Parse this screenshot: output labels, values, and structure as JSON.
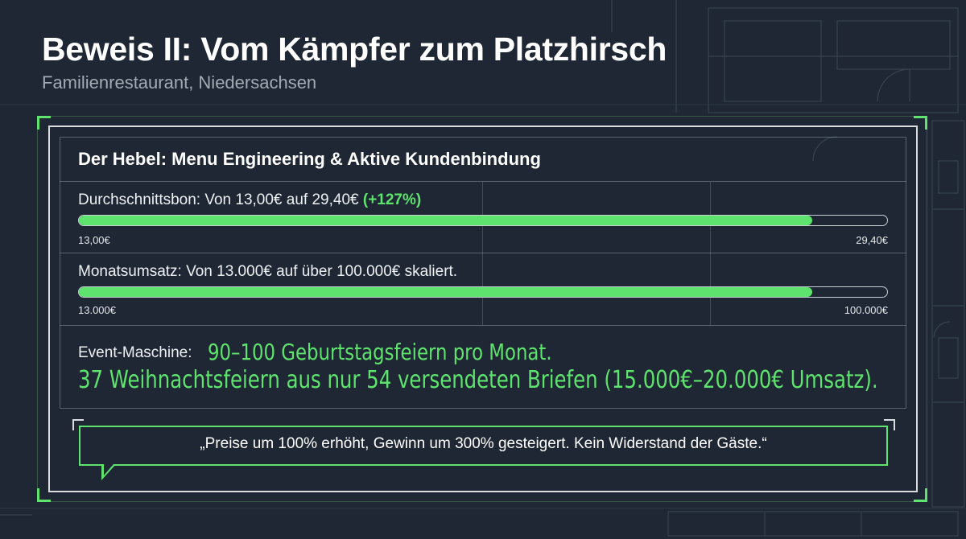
{
  "slide": {
    "title": "Beweis II: Vom Kämpfer zum Platzhirsch",
    "subtitle": "Familienrestaurant, Niedersachsen"
  },
  "panel": {
    "heading": "Der Hebel: Menu Engineering & Aktive Kundenbindung"
  },
  "metrics": [
    {
      "label": "Durchschnittsbon: Von 13,00€ auf 29,40€",
      "highlight": "(+127%)",
      "min_label": "13,00€",
      "max_label": "29,40€",
      "progress": 0.907
    },
    {
      "label": "Monatsumsatz: Von 13.000€ auf über 100.000€ skaliert.",
      "min_label": "13.000€",
      "max_label": "100.000€",
      "progress": 0.907
    }
  ],
  "event": {
    "prefix": "Event-Maschine:",
    "line1": "90–100 Geburtstagsfeiern pro Monat.",
    "line2": "37 Weihnachtsfeiern aus nur 54 versendeten Briefen (15.000€–20.000€ Umsatz)."
  },
  "quote": {
    "text": "„Preise um 100% erhöht, Gewinn um 300% gesteigert. Kein Widerstand der Gäste.“"
  },
  "colors": {
    "background": "#1e2733",
    "accent": "#5ee36e",
    "text": "#ffffff",
    "muted": "#a3aab3"
  }
}
